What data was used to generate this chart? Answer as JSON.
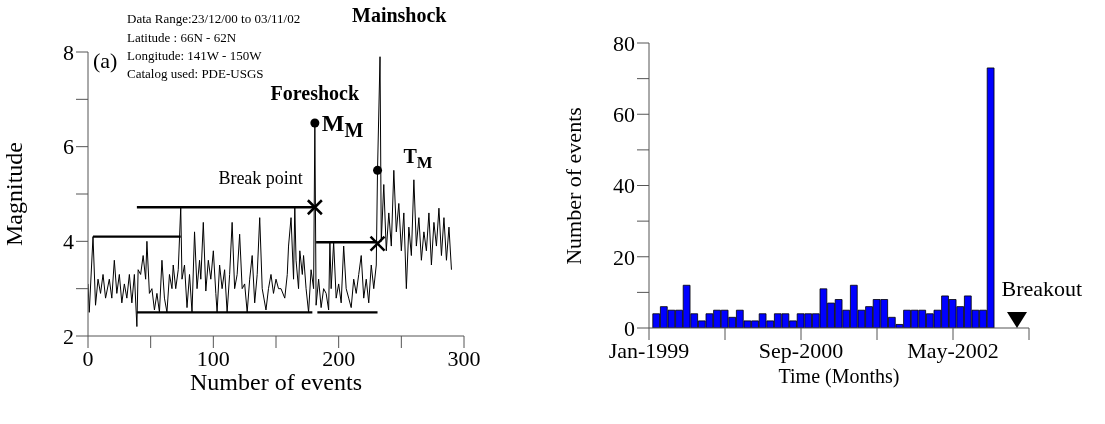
{
  "chart_data": [
    {
      "type": "line",
      "xlabel": "Number of events",
      "ylabel": "Magnitude",
      "annotations": [
        "Data Range:23/12/00 to 03/11/02",
        "Latitude : 66N - 62N",
        "Longitude: 141W - 150W",
        "Catalog used: PDE-USGS",
        "(a)",
        {
          "text": "Foreshock",
          "x": 181,
          "y": 6.5
        },
        {
          "text": "M$_{M}$",
          "x": 181,
          "y": 6.5
        },
        {
          "text": "Mainshock",
          "x": 233,
          "y": 7.9
        },
        {
          "text": "T$_{M}$",
          "x": 231,
          "y": 5.5
        },
        {
          "text": "Break point",
          "x": 181,
          "y": 4.72
        }
      ],
      "series": [
        {
          "color": "#000000",
          "x": [
            0,
            1,
            4,
            6,
            8,
            10,
            12,
            14,
            17,
            19,
            21,
            23,
            25,
            27,
            29,
            31,
            33,
            35,
            37,
            39,
            40,
            42,
            44,
            46,
            47,
            49,
            51,
            53,
            55,
            57,
            59,
            61,
            63,
            65,
            67,
            68,
            70,
            72,
            74,
            75,
            77,
            79,
            81,
            83,
            85,
            87,
            89,
            90,
            92,
            94,
            96,
            98,
            100,
            102,
            103,
            105,
            107,
            109,
            111,
            113,
            115,
            117,
            119,
            121,
            123,
            125,
            127,
            129,
            131,
            133,
            135,
            137,
            139,
            142,
            144,
            146,
            148,
            150,
            152,
            154,
            157,
            159,
            160,
            162,
            164,
            165,
            166,
            168,
            169,
            171,
            172,
            174,
            176,
            178,
            180,
            181,
            182,
            184,
            186,
            188,
            190,
            192,
            193,
            194,
            196,
            198,
            200,
            202,
            204,
            206,
            208,
            210,
            212,
            214,
            216,
            218,
            220,
            222,
            224,
            226,
            228,
            230,
            231,
            233,
            234,
            236,
            238,
            240,
            242,
            244,
            246,
            248,
            250,
            252,
            254,
            256,
            258,
            260,
            262,
            264,
            266,
            268,
            270,
            272,
            274,
            276,
            278,
            280,
            282,
            284,
            286,
            288,
            290
          ],
          "values": [
            3.1,
            2.5,
            4.1,
            2.65,
            3.2,
            2.9,
            3.3,
            2.8,
            3.2,
            2.8,
            3.6,
            2.9,
            3.3,
            2.7,
            3.1,
            2.8,
            3.3,
            2.7,
            3.3,
            2.2,
            3.4,
            3.3,
            3.7,
            3.2,
            4.0,
            2.9,
            3.0,
            2.55,
            2.9,
            2.5,
            3.6,
            2.8,
            2.5,
            3.3,
            3.0,
            3.5,
            3.0,
            3.4,
            4.72,
            3.2,
            3.5,
            2.6,
            3.3,
            2.5,
            4.2,
            3.0,
            3.6,
            3.2,
            4.4,
            2.95,
            3.6,
            3.2,
            3.8,
            2.9,
            2.5,
            3.5,
            3.0,
            3.4,
            2.5,
            3.3,
            4.4,
            3.0,
            3.3,
            4.15,
            3.0,
            3.1,
            2.5,
            3.2,
            3.7,
            2.7,
            3.3,
            4.5,
            3.0,
            2.55,
            3.0,
            3.3,
            2.9,
            3.2,
            3.0,
            3.0,
            2.8,
            3.3,
            3.9,
            4.5,
            3.2,
            4.72,
            3.6,
            3.0,
            3.8,
            3.3,
            3.7,
            3.0,
            2.5,
            3.4,
            3.0,
            6.5,
            2.65,
            3.2,
            2.6,
            3.0,
            2.9,
            2.55,
            3.98,
            3.0,
            3.98,
            2.8,
            3.1,
            2.7,
            3.9,
            3.0,
            2.8,
            2.6,
            3.2,
            2.9,
            3.3,
            3.7,
            2.8,
            3.2,
            2.7,
            3.5,
            3.0,
            3.5,
            5.5,
            7.9,
            4.0,
            5.2,
            3.8,
            4.6,
            3.9,
            5.5,
            4.2,
            4.8,
            3.8,
            4.6,
            3.0,
            4.3,
            3.7,
            5.3,
            3.9,
            4.5,
            3.6,
            4.2,
            3.8,
            4.6,
            3.5,
            4.4,
            3.9,
            4.7,
            3.7,
            4.5,
            3.6,
            4.3,
            3.4
          ]
        },
        {
          "type": "line",
          "color": "#000000",
          "x": [
            4,
            74
          ],
          "values": [
            4.1,
            4.1
          ]
        },
        {
          "type": "line",
          "color": "#000000",
          "x": [
            39,
            181
          ],
          "values": [
            4.72,
            4.72
          ]
        },
        {
          "type": "line",
          "color": "#000000",
          "x": [
            39,
            179
          ],
          "values": [
            2.5,
            2.5
          ]
        },
        {
          "type": "line",
          "color": "#000000",
          "x": [
            182,
            231
          ],
          "values": [
            3.98,
            3.98
          ]
        },
        {
          "type": "line",
          "color": "#000000",
          "x": [
            183,
            231
          ],
          "values": [
            2.5,
            2.5
          ]
        },
        {
          "type": "scatter",
          "marker": "circle",
          "color": "#000000",
          "x": [
            181,
            231
          ],
          "values": [
            6.5,
            5.5
          ]
        },
        {
          "type": "scatter",
          "marker": "cross",
          "color": "#000000",
          "x": [
            181,
            231
          ],
          "values": [
            4.72,
            3.95
          ]
        }
      ],
      "xlim": [
        0,
        300
      ],
      "xticks": [
        0,
        {
          "value": 50,
          "label": null
        },
        100,
        {
          "value": 150,
          "label": null
        },
        200,
        {
          "value": 250,
          "label": null
        },
        300
      ],
      "ylim": [
        2,
        8
      ],
      "yticks": [
        2,
        {
          "value": 3,
          "label": null
        },
        4,
        {
          "value": 5,
          "label": null
        },
        6,
        {
          "value": 7,
          "label": null
        },
        8
      ]
    },
    {
      "type": "bar",
      "xlabel": "Time (Months)",
      "ylabel": "Number of events",
      "color": "#0000ff",
      "x": [
        "1999-02",
        "1999-03",
        "1999-04",
        "1999-05",
        "1999-06",
        "1999-07",
        "1999-08",
        "1999-09",
        "1999-10",
        "1999-11",
        "1999-12",
        "2000-01",
        "2000-02",
        "2000-03",
        "2000-04",
        "2000-05",
        "2000-06",
        "2000-07",
        "2000-08",
        "2000-09",
        "2000-10",
        "2000-11",
        "2000-12",
        "2001-01",
        "2001-02",
        "2001-03",
        "2001-04",
        "2001-05",
        "2001-06",
        "2001-07",
        "2001-08",
        "2001-09",
        "2001-10",
        "2001-11",
        "2001-12",
        "2002-01",
        "2002-02",
        "2002-03",
        "2002-04",
        "2002-05",
        "2002-06",
        "2002-07",
        "2002-08",
        "2002-09",
        "2002-10"
      ],
      "values": [
        4,
        6,
        5,
        5,
        12,
        4,
        2,
        4,
        5,
        5,
        3,
        5,
        2,
        2,
        4,
        2,
        4,
        4,
        2,
        4,
        4,
        4,
        11,
        7,
        8,
        5,
        12,
        5,
        6,
        8,
        8,
        3,
        1,
        5,
        5,
        5,
        4,
        5,
        9,
        8,
        6,
        9,
        5,
        5,
        73
      ],
      "annotations": [
        {
          "text": "Breakout",
          "x": "2002-11",
          "y": 0
        }
      ],
      "xlim": [
        "1999-01",
        "2003-03"
      ],
      "xticks": [
        {
          "value": "1999-01",
          "label": "Jan-1999"
        },
        {
          "value": "1999-11",
          "label": null
        },
        {
          "value": "2000-09",
          "label": "Sep-2000"
        },
        {
          "value": "2001-07",
          "label": null
        },
        {
          "value": "2002-05",
          "label": "May-2002"
        },
        {
          "value": "2003-03",
          "label": null
        }
      ],
      "ylim": [
        0,
        80
      ],
      "yticks": [
        0,
        {
          "value": 10,
          "label": null
        },
        20,
        {
          "value": 30,
          "label": null
        },
        40,
        {
          "value": 50,
          "label": null
        },
        60,
        {
          "value": 70,
          "label": null
        },
        80
      ]
    }
  ]
}
